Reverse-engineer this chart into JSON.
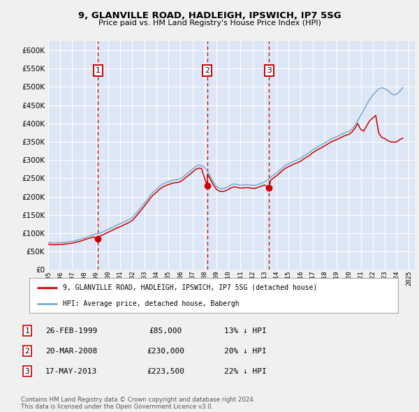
{
  "title": "9, GLANVILLE ROAD, HADLEIGH, IPSWICH, IP7 5SG",
  "subtitle": "Price paid vs. HM Land Registry's House Price Index (HPI)",
  "ylim": [
    0,
    625000
  ],
  "yticks": [
    0,
    50000,
    100000,
    150000,
    200000,
    250000,
    300000,
    350000,
    400000,
    450000,
    500000,
    550000,
    600000
  ],
  "ytick_labels": [
    "£0",
    "£50K",
    "£100K",
    "£150K",
    "£200K",
    "£250K",
    "£300K",
    "£350K",
    "£400K",
    "£450K",
    "£500K",
    "£550K",
    "£600K"
  ],
  "xlim_start": 1995.0,
  "xlim_end": 2025.5,
  "outer_bg": "#f0f0f0",
  "plot_bg_color": "#dce6f5",
  "grid_color": "#ffffff",
  "red_line_color": "#cc0000",
  "blue_line_color": "#7aaad0",
  "sale_marker_color": "#cc0000",
  "dashed_line_color": "#cc0000",
  "hpi_x": [
    1995.0,
    1995.25,
    1995.5,
    1995.75,
    1996.0,
    1996.25,
    1996.5,
    1996.75,
    1997.0,
    1997.25,
    1997.5,
    1997.75,
    1998.0,
    1998.25,
    1998.5,
    1998.75,
    1999.0,
    1999.25,
    1999.5,
    1999.75,
    2000.0,
    2000.25,
    2000.5,
    2000.75,
    2001.0,
    2001.25,
    2001.5,
    2001.75,
    2002.0,
    2002.25,
    2002.5,
    2002.75,
    2003.0,
    2003.25,
    2003.5,
    2003.75,
    2004.0,
    2004.25,
    2004.5,
    2004.75,
    2005.0,
    2005.25,
    2005.5,
    2005.75,
    2006.0,
    2006.25,
    2006.5,
    2006.75,
    2007.0,
    2007.25,
    2007.5,
    2007.75,
    2008.0,
    2008.25,
    2008.5,
    2008.75,
    2009.0,
    2009.25,
    2009.5,
    2009.75,
    2010.0,
    2010.25,
    2010.5,
    2010.75,
    2011.0,
    2011.25,
    2011.5,
    2011.75,
    2012.0,
    2012.25,
    2012.5,
    2012.75,
    2013.0,
    2013.25,
    2013.5,
    2013.75,
    2014.0,
    2014.25,
    2014.5,
    2014.75,
    2015.0,
    2015.25,
    2015.5,
    2015.75,
    2016.0,
    2016.25,
    2016.5,
    2016.75,
    2017.0,
    2017.25,
    2017.5,
    2017.75,
    2018.0,
    2018.25,
    2018.5,
    2018.75,
    2019.0,
    2019.25,
    2019.5,
    2019.75,
    2020.0,
    2020.25,
    2020.5,
    2020.75,
    2021.0,
    2021.25,
    2021.5,
    2021.75,
    2022.0,
    2022.25,
    2022.5,
    2022.75,
    2023.0,
    2023.25,
    2023.5,
    2023.75,
    2024.0,
    2024.25,
    2024.5
  ],
  "hpi_y": [
    75000,
    74000,
    73500,
    74000,
    74500,
    75000,
    76000,
    77000,
    78000,
    80000,
    82000,
    84000,
    87000,
    90000,
    93000,
    96000,
    98000,
    100000,
    103000,
    107000,
    111000,
    115000,
    119000,
    123000,
    126000,
    130000,
    134000,
    138000,
    143000,
    152000,
    162000,
    172000,
    182000,
    193000,
    204000,
    213000,
    220000,
    228000,
    234000,
    238000,
    241000,
    244000,
    246000,
    247000,
    249000,
    255000,
    262000,
    268000,
    275000,
    282000,
    286000,
    285000,
    280000,
    270000,
    255000,
    240000,
    228000,
    223000,
    222000,
    224000,
    228000,
    233000,
    235000,
    233000,
    231000,
    232000,
    233000,
    232000,
    231000,
    231000,
    234000,
    237000,
    240000,
    246000,
    253000,
    259000,
    265000,
    272000,
    280000,
    286000,
    290000,
    294000,
    298000,
    301000,
    305000,
    311000,
    316000,
    321000,
    328000,
    333000,
    338000,
    342000,
    347000,
    352000,
    357000,
    361000,
    364000,
    368000,
    372000,
    376000,
    378000,
    384000,
    394000,
    408000,
    422000,
    437000,
    452000,
    466000,
    477000,
    487000,
    495000,
    498000,
    495000,
    490000,
    483000,
    478000,
    480000,
    488000,
    498000
  ],
  "red_x": [
    1995.0,
    1995.25,
    1995.5,
    1995.75,
    1996.0,
    1996.25,
    1996.5,
    1996.75,
    1997.0,
    1997.25,
    1997.5,
    1997.75,
    1998.0,
    1998.25,
    1998.5,
    1998.75,
    1999.15,
    1999.25,
    1999.5,
    1999.75,
    2000.0,
    2000.25,
    2000.5,
    2000.75,
    2001.0,
    2001.25,
    2001.5,
    2001.75,
    2002.0,
    2002.25,
    2002.5,
    2002.75,
    2003.0,
    2003.25,
    2003.5,
    2003.75,
    2004.0,
    2004.25,
    2004.5,
    2004.75,
    2005.0,
    2005.25,
    2005.5,
    2005.75,
    2006.0,
    2006.25,
    2006.5,
    2006.75,
    2007.0,
    2007.25,
    2007.5,
    2007.75,
    2008.22,
    2008.25,
    2008.5,
    2008.75,
    2009.0,
    2009.25,
    2009.5,
    2009.75,
    2010.0,
    2010.25,
    2010.5,
    2010.75,
    2011.0,
    2011.25,
    2011.5,
    2011.75,
    2012.0,
    2012.25,
    2012.5,
    2012.75,
    2013.0,
    2013.38,
    2013.5,
    2013.75,
    2014.0,
    2014.25,
    2014.5,
    2014.75,
    2015.0,
    2015.25,
    2015.5,
    2015.75,
    2016.0,
    2016.25,
    2016.5,
    2016.75,
    2017.0,
    2017.25,
    2017.5,
    2017.75,
    2018.0,
    2018.25,
    2018.5,
    2018.75,
    2019.0,
    2019.25,
    2019.5,
    2019.75,
    2020.0,
    2020.25,
    2020.5,
    2020.75,
    2021.0,
    2021.25,
    2021.5,
    2021.75,
    2022.0,
    2022.25,
    2022.5,
    2022.75,
    2023.0,
    2023.25,
    2023.5,
    2023.75,
    2024.0,
    2024.25,
    2024.5
  ],
  "red_y": [
    70000,
    69000,
    68500,
    69000,
    69500,
    70000,
    71000,
    72000,
    73000,
    75000,
    77000,
    79000,
    82000,
    85000,
    87000,
    90000,
    85000,
    92000,
    95000,
    99000,
    103000,
    107000,
    111000,
    115000,
    118000,
    122000,
    126000,
    130000,
    135000,
    144000,
    154000,
    164000,
    174000,
    185000,
    196000,
    205000,
    212000,
    220000,
    226000,
    230000,
    233000,
    236000,
    238000,
    239000,
    241000,
    247000,
    254000,
    260000,
    267000,
    274000,
    278000,
    277000,
    230000,
    262000,
    247000,
    232000,
    220000,
    215000,
    214000,
    216000,
    220000,
    225000,
    227000,
    225000,
    223500,
    224000,
    225000,
    224000,
    223000,
    223000,
    226000,
    229000,
    232000,
    223500,
    245000,
    251000,
    257000,
    264000,
    272000,
    278000,
    282000,
    286000,
    290000,
    293000,
    297000,
    303000,
    308000,
    313000,
    320000,
    325000,
    330000,
    334000,
    339000,
    344000,
    349000,
    353000,
    356000,
    360000,
    364000,
    368000,
    370000,
    376000,
    386000,
    400000,
    384000,
    379000,
    394000,
    408000,
    415000,
    422000,
    374000,
    362000,
    359000,
    353000,
    350000,
    349000,
    350000,
    356000,
    360000
  ],
  "sale1_x": 1999.15,
  "sale1_y": 85000,
  "sale2_x": 2008.22,
  "sale2_y": 230000,
  "sale3_x": 2013.38,
  "sale3_y": 223500,
  "sale1_label": "1",
  "sale2_label": "2",
  "sale3_label": "3",
  "legend_line1": "9, GLANVILLE ROAD, HADLEIGH, IPSWICH, IP7 5SG (detached house)",
  "legend_line2": "HPI: Average price, detached house, Babergh",
  "table_rows": [
    [
      "1",
      "26-FEB-1999",
      "£85,000",
      "13% ↓ HPI"
    ],
    [
      "2",
      "20-MAR-2008",
      "£230,000",
      "20% ↓ HPI"
    ],
    [
      "3",
      "17-MAY-2013",
      "£223,500",
      "22% ↓ HPI"
    ]
  ],
  "footer": "Contains HM Land Registry data © Crown copyright and database right 2024.\nThis data is licensed under the Open Government Licence v3.0."
}
